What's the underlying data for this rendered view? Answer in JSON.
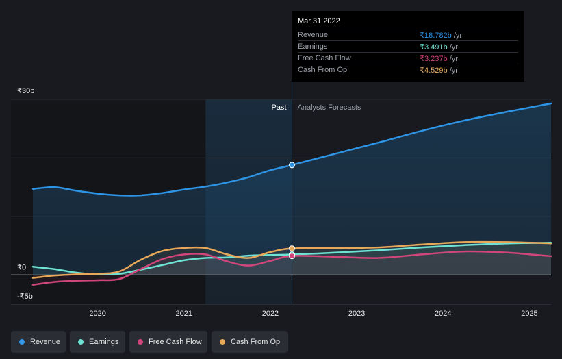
{
  "chart_data": {
    "type": "area",
    "currency_symbol": "₹",
    "y_ticks": [
      "₹30b",
      "₹0",
      "-₹5b"
    ],
    "ylim": [
      -5,
      30
    ],
    "xlim": [
      2019.25,
      2025.25
    ],
    "x_ticks": [
      "2020",
      "2021",
      "2022",
      "2023",
      "2024",
      "2025"
    ],
    "divider_x": 2022.25,
    "highlight_start": 2021.25,
    "past_label": "Past",
    "forecast_label": "Analysts Forecasts",
    "series": [
      {
        "name": "Revenue",
        "color": "#2e94e6",
        "filled": true,
        "x": [
          2019.25,
          2019.5,
          2019.75,
          2020.0,
          2020.25,
          2020.5,
          2020.75,
          2021.0,
          2021.25,
          2021.5,
          2021.75,
          2022.0,
          2022.25,
          2022.75,
          2023.25,
          2023.75,
          2024.25,
          2024.75,
          2025.25
        ],
        "y": [
          14.7,
          15.0,
          14.4,
          13.9,
          13.6,
          13.6,
          14.0,
          14.6,
          15.1,
          15.8,
          16.7,
          17.9,
          18.782,
          20.7,
          22.6,
          24.6,
          26.4,
          27.9,
          29.3
        ]
      },
      {
        "name": "Earnings",
        "color": "#6fe3d3",
        "filled": false,
        "x": [
          2019.25,
          2019.5,
          2019.75,
          2020.0,
          2020.25,
          2020.5,
          2020.75,
          2021.0,
          2021.25,
          2021.5,
          2021.75,
          2022.0,
          2022.25,
          2022.75,
          2023.25,
          2023.75,
          2024.25,
          2024.75,
          2025.25
        ],
        "y": [
          1.4,
          1.0,
          0.4,
          0.1,
          0.2,
          0.9,
          1.7,
          2.5,
          2.9,
          3.0,
          3.3,
          3.4,
          3.491,
          3.8,
          4.2,
          4.7,
          5.1,
          5.4,
          5.5
        ]
      },
      {
        "name": "Free Cash Flow",
        "color": "#d0467a",
        "filled": false,
        "x": [
          2019.25,
          2019.5,
          2019.75,
          2020.0,
          2020.25,
          2020.5,
          2020.75,
          2021.0,
          2021.25,
          2021.5,
          2021.75,
          2022.0,
          2022.25,
          2022.75,
          2023.25,
          2023.75,
          2024.25,
          2024.75,
          2025.25
        ],
        "y": [
          -1.7,
          -1.2,
          -1.0,
          -0.9,
          -0.7,
          1.0,
          2.7,
          3.5,
          3.5,
          2.3,
          1.6,
          2.4,
          3.237,
          3.1,
          2.9,
          3.5,
          4.0,
          3.8,
          3.2
        ]
      },
      {
        "name": "Cash From Op",
        "color": "#e8a85a",
        "filled": false,
        "x": [
          2019.25,
          2019.5,
          2019.75,
          2020.0,
          2020.25,
          2020.5,
          2020.75,
          2021.0,
          2021.25,
          2021.5,
          2021.75,
          2022.0,
          2022.25,
          2022.75,
          2023.25,
          2023.75,
          2024.25,
          2024.75,
          2025.25
        ],
        "y": [
          -0.5,
          -0.1,
          0.1,
          0.2,
          0.6,
          2.6,
          4.1,
          4.6,
          4.6,
          3.5,
          2.9,
          3.9,
          4.529,
          4.6,
          4.7,
          5.2,
          5.6,
          5.6,
          5.4
        ]
      }
    ]
  },
  "tooltip": {
    "date": "Mar 31 2022",
    "rows": [
      {
        "label": "Revenue",
        "value": "₹18.782b",
        "unit": " /yr",
        "color": "#2e94e6"
      },
      {
        "label": "Earnings",
        "value": "₹3.491b",
        "unit": " /yr",
        "color": "#6fe3d3"
      },
      {
        "label": "Free Cash Flow",
        "value": "₹3.237b",
        "unit": " /yr",
        "color": "#d0467a"
      },
      {
        "label": "Cash From Op",
        "value": "₹4.529b",
        "unit": " /yr",
        "color": "#e8a85a"
      }
    ]
  },
  "legend": {
    "items": [
      {
        "label": "Revenue",
        "color": "#2e94e6"
      },
      {
        "label": "Earnings",
        "color": "#6fe3d3"
      },
      {
        "label": "Free Cash Flow",
        "color": "#d0467a"
      },
      {
        "label": "Cash From Op",
        "color": "#e8a85a"
      }
    ]
  }
}
